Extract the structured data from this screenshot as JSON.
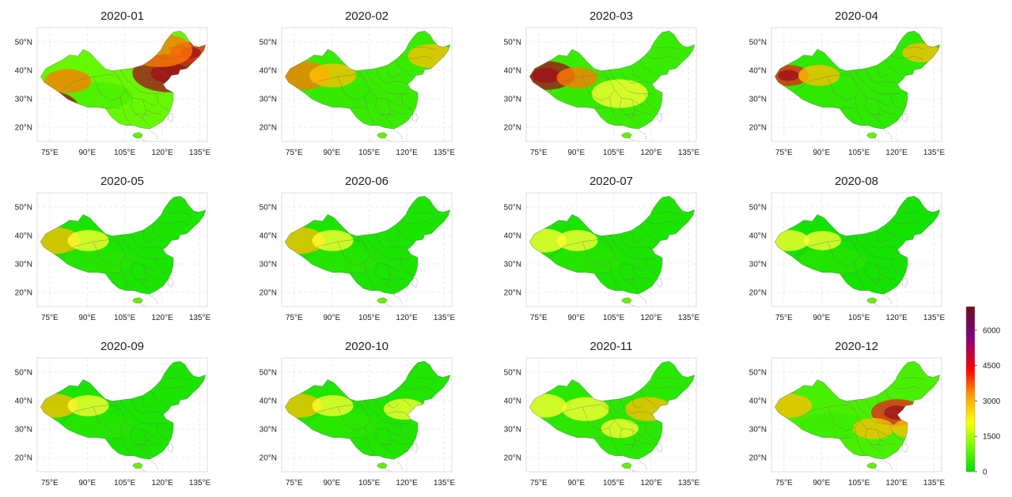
{
  "panels": [
    {
      "title": "2020-01",
      "base": 0.4,
      "hot": [
        [
          0.05,
          0.7,
          0.85,
          0.35
        ],
        [
          0.78,
          0.4,
          1.0,
          0.4
        ],
        [
          0.9,
          0.22,
          0.75,
          0.22
        ],
        [
          0.18,
          0.47,
          0.55,
          0.25
        ],
        [
          0.72,
          0.2,
          0.55,
          0.35
        ]
      ]
    },
    {
      "title": "2020-02",
      "base": 0.22,
      "hot": [
        [
          0.12,
          0.42,
          0.55,
          0.3
        ],
        [
          0.3,
          0.42,
          0.45,
          0.25
        ],
        [
          0.88,
          0.25,
          0.35,
          0.25
        ]
      ]
    },
    {
      "title": "2020-03",
      "base": 0.22,
      "hot": [
        [
          0.12,
          0.42,
          0.95,
          0.3
        ],
        [
          0.3,
          0.44,
          0.5,
          0.22
        ],
        [
          0.55,
          0.58,
          0.25,
          0.3
        ]
      ]
    },
    {
      "title": "2020-04",
      "base": 0.18,
      "hot": [
        [
          0.1,
          0.42,
          0.8,
          0.22
        ],
        [
          0.28,
          0.42,
          0.4,
          0.22
        ],
        [
          0.88,
          0.22,
          0.35,
          0.2
        ]
      ]
    },
    {
      "title": "2020-05",
      "base": 0.1,
      "hot": [
        [
          0.1,
          0.42,
          0.4,
          0.28
        ],
        [
          0.3,
          0.42,
          0.2,
          0.22
        ]
      ]
    },
    {
      "title": "2020-06",
      "base": 0.1,
      "hot": [
        [
          0.1,
          0.42,
          0.35,
          0.28
        ],
        [
          0.3,
          0.42,
          0.2,
          0.22
        ]
      ]
    },
    {
      "title": "2020-07",
      "base": 0.1,
      "hot": [
        [
          0.1,
          0.42,
          0.3,
          0.25
        ],
        [
          0.3,
          0.42,
          0.18,
          0.22
        ]
      ]
    },
    {
      "title": "2020-08",
      "base": 0.08,
      "hot": [
        [
          0.1,
          0.42,
          0.28,
          0.22
        ],
        [
          0.3,
          0.42,
          0.15,
          0.2
        ]
      ]
    },
    {
      "title": "2020-09",
      "base": 0.1,
      "hot": [
        [
          0.1,
          0.42,
          0.35,
          0.25
        ],
        [
          0.3,
          0.42,
          0.2,
          0.22
        ]
      ]
    },
    {
      "title": "2020-10",
      "base": 0.12,
      "hot": [
        [
          0.1,
          0.42,
          0.35,
          0.25
        ],
        [
          0.3,
          0.42,
          0.22,
          0.22
        ],
        [
          0.72,
          0.45,
          0.28,
          0.22
        ]
      ]
    },
    {
      "title": "2020-11",
      "base": 0.16,
      "hot": [
        [
          0.1,
          0.42,
          0.28,
          0.25
        ],
        [
          0.35,
          0.45,
          0.22,
          0.25
        ],
        [
          0.72,
          0.45,
          0.45,
          0.25
        ],
        [
          0.55,
          0.62,
          0.3,
          0.2
        ]
      ]
    },
    {
      "title": "2020-12",
      "base": 0.28,
      "hot": [
        [
          0.18,
          0.12,
          0.8,
          0.18
        ],
        [
          0.1,
          0.42,
          0.4,
          0.25
        ],
        [
          0.74,
          0.48,
          0.75,
          0.28
        ],
        [
          0.6,
          0.62,
          0.45,
          0.22
        ],
        [
          0.82,
          0.62,
          0.35,
          0.2
        ]
      ]
    }
  ],
  "axes": {
    "lon_ticks": [
      "75°E",
      "90°E",
      "105°E",
      "120°E",
      "135°E"
    ],
    "lon_values": [
      75,
      90,
      105,
      120,
      135
    ],
    "lat_ticks": [
      "20°N",
      "30°N",
      "40°N",
      "50°N"
    ],
    "lat_values": [
      20,
      30,
      40,
      50
    ],
    "lon_range": [
      70,
      138
    ],
    "lat_range": [
      15,
      55
    ]
  },
  "colorbar": {
    "range": [
      0,
      7000
    ],
    "ticks": [
      "0",
      "1500",
      "3000",
      "4500",
      "6000"
    ],
    "tick_values": [
      0,
      1500,
      3000,
      4500,
      6000
    ],
    "colors": [
      "#00dd00",
      "#80ff00",
      "#ffff00",
      "#ffa500",
      "#ff0000",
      "#800080",
      "#6b0f1a"
    ]
  }
}
